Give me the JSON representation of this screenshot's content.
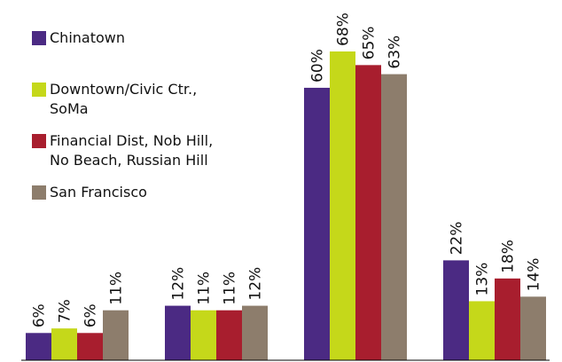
{
  "chart_data": {
    "type": "bar",
    "categories": [
      "",
      "",
      "",
      ""
    ],
    "series": [
      {
        "name": "Chinatown",
        "color": "#4b2a83",
        "values": [
          6,
          12,
          60,
          22
        ]
      },
      {
        "name": "Downtown/Civic Ctr.,\nSoMa",
        "color": "#c5d81a",
        "values": [
          7,
          11,
          68,
          13
        ]
      },
      {
        "name": "Financial Dist, Nob Hill,\nNo Beach, Russian Hill",
        "color": "#a81e2e",
        "values": [
          6,
          11,
          65,
          18
        ]
      },
      {
        "name": "San Francisco",
        "color": "#8d7d6c",
        "values": [
          11,
          12,
          63,
          14
        ]
      }
    ],
    "value_labels": [
      [
        "6%",
        "12%",
        "60%",
        "22%"
      ],
      [
        "7%",
        "11%",
        "68%",
        "13%"
      ],
      [
        "6%",
        "11%",
        "65%",
        "18%"
      ],
      [
        "11%",
        "12%",
        "63%",
        "14%"
      ]
    ],
    "ylim": [
      0,
      72
    ],
    "grid": false,
    "legend_position": "top-left"
  }
}
